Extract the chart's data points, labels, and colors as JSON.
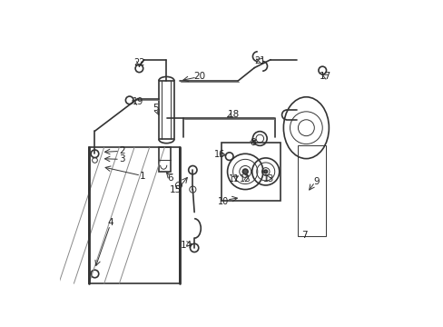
{
  "bg_color": "#ffffff",
  "line_color": "#333333",
  "text_color": "#222222",
  "fig_width": 4.89,
  "fig_height": 3.6,
  "dpi": 100
}
